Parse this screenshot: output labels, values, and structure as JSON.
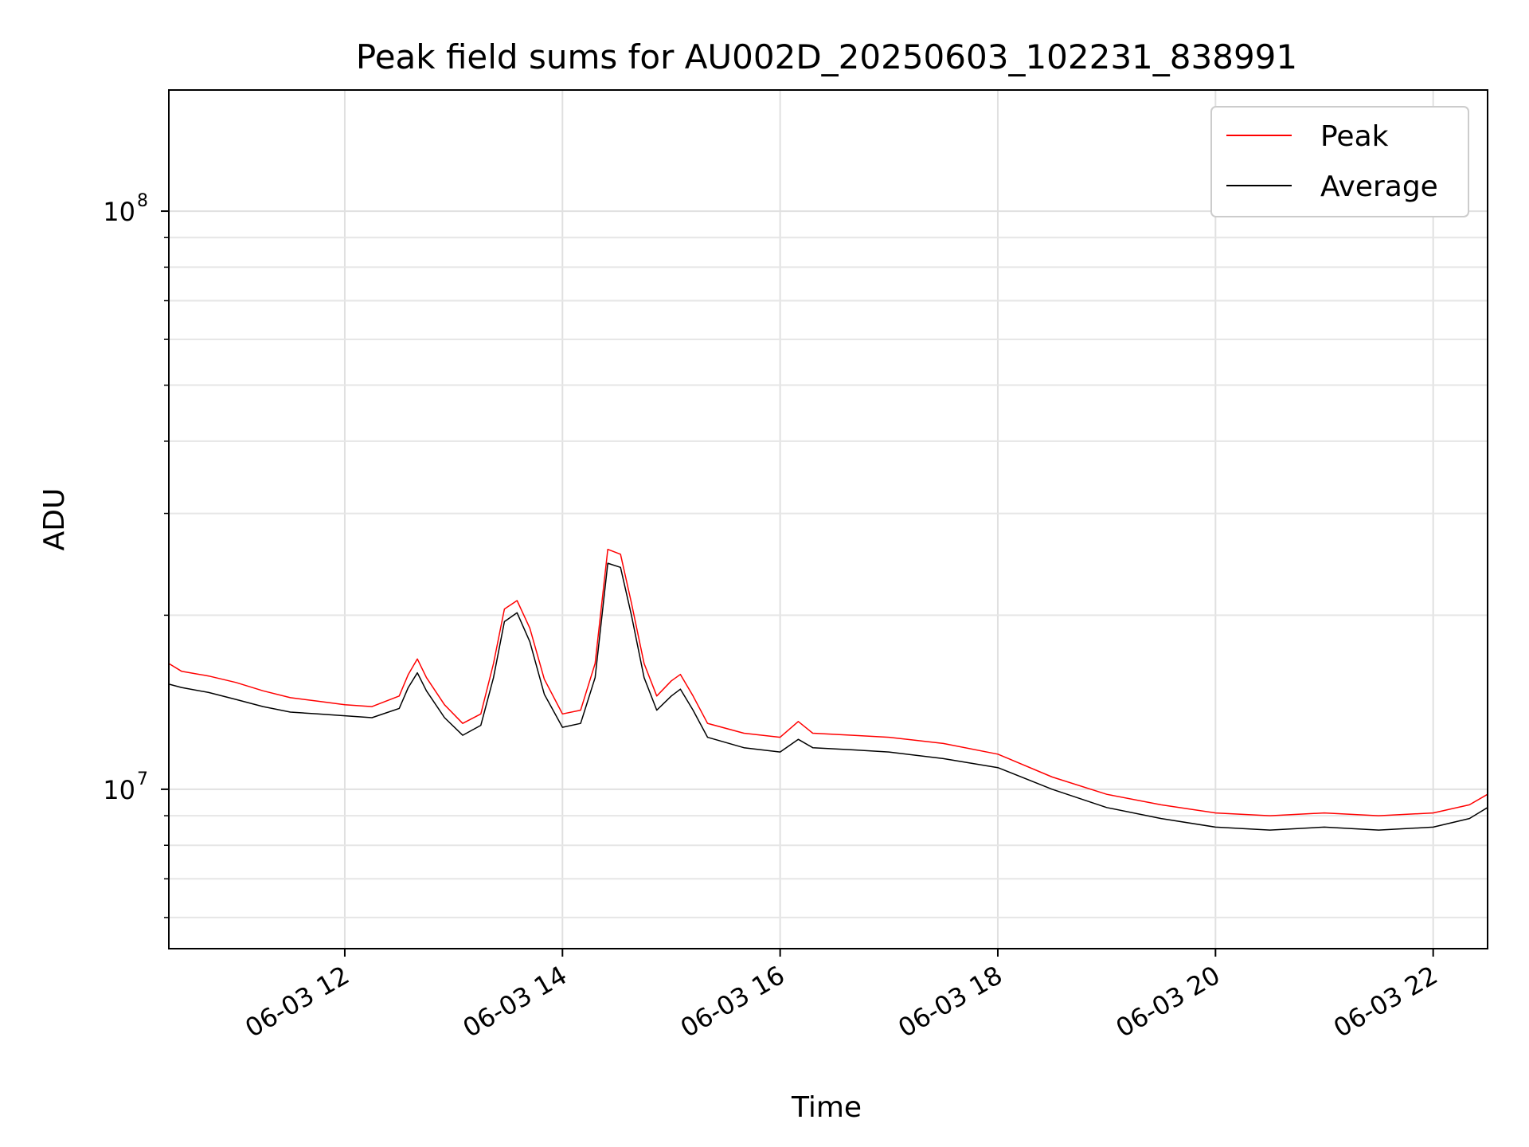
{
  "chart_data": {
    "type": "line",
    "title": "Peak field sums for AU002D_20250603_102231_838991",
    "xlabel": "Time",
    "ylabel": "ADU",
    "yscale": "log",
    "xlim": [
      "2025-06-03 10:23",
      "2025-06-03 22:30"
    ],
    "ylim": [
      5300000,
      162000000
    ],
    "grid": true,
    "legend_position": "top-right",
    "x_ticks": [
      "2025-06-03 12:00",
      "2025-06-03 14:00",
      "2025-06-03 16:00",
      "2025-06-03 18:00",
      "2025-06-03 20:00",
      "2025-06-03 22:00"
    ],
    "x_tick_labels": [
      "06-03 12",
      "06-03 14",
      "06-03 16",
      "06-03 18",
      "06-03 20",
      "06-03 22"
    ],
    "y_major_ticks": [
      10000000,
      100000000
    ],
    "y_tick_base": "10",
    "y_tick_exponents": [
      "7",
      "8"
    ],
    "y_minor_ticks": [
      6000000,
      7000000,
      8000000,
      9000000,
      20000000,
      30000000,
      40000000,
      50000000,
      60000000,
      70000000,
      80000000,
      90000000
    ],
    "series": [
      {
        "name": "Peak",
        "color": "#ff0000",
        "points": [
          [
            "2025-06-03 10:23",
            16500000
          ],
          [
            "2025-06-03 10:30",
            16000000
          ],
          [
            "2025-06-03 10:45",
            15700000
          ],
          [
            "2025-06-03 11:00",
            15300000
          ],
          [
            "2025-06-03 11:15",
            14800000
          ],
          [
            "2025-06-03 11:30",
            14400000
          ],
          [
            "2025-06-03 11:45",
            14200000
          ],
          [
            "2025-06-03 12:00",
            14000000
          ],
          [
            "2025-06-03 12:15",
            13900000
          ],
          [
            "2025-06-03 12:30",
            14500000
          ],
          [
            "2025-06-03 12:35",
            15800000
          ],
          [
            "2025-06-03 12:40",
            16800000
          ],
          [
            "2025-06-03 12:45",
            15600000
          ],
          [
            "2025-06-03 12:55",
            14000000
          ],
          [
            "2025-06-03 13:05",
            13000000
          ],
          [
            "2025-06-03 13:15",
            13500000
          ],
          [
            "2025-06-03 13:22",
            16500000
          ],
          [
            "2025-06-03 13:28",
            20500000
          ],
          [
            "2025-06-03 13:35",
            21200000
          ],
          [
            "2025-06-03 13:42",
            19000000
          ],
          [
            "2025-06-03 13:50",
            15500000
          ],
          [
            "2025-06-03 14:00",
            13500000
          ],
          [
            "2025-06-03 14:10",
            13700000
          ],
          [
            "2025-06-03 14:18",
            16500000
          ],
          [
            "2025-06-03 14:25",
            26000000
          ],
          [
            "2025-06-03 14:32",
            25500000
          ],
          [
            "2025-06-03 14:38",
            21000000
          ],
          [
            "2025-06-03 14:45",
            16500000
          ],
          [
            "2025-06-03 14:52",
            14500000
          ],
          [
            "2025-06-03 15:00",
            15400000
          ],
          [
            "2025-06-03 15:05",
            15800000
          ],
          [
            "2025-06-03 15:12",
            14500000
          ],
          [
            "2025-06-03 15:20",
            13000000
          ],
          [
            "2025-06-03 15:40",
            12500000
          ],
          [
            "2025-06-03 16:00",
            12300000
          ],
          [
            "2025-06-03 16:10",
            13100000
          ],
          [
            "2025-06-03 16:18",
            12500000
          ],
          [
            "2025-06-03 16:40",
            12400000
          ],
          [
            "2025-06-03 17:00",
            12300000
          ],
          [
            "2025-06-03 17:30",
            12000000
          ],
          [
            "2025-06-03 18:00",
            11500000
          ],
          [
            "2025-06-03 18:30",
            10500000
          ],
          [
            "2025-06-03 19:00",
            9800000
          ],
          [
            "2025-06-03 19:30",
            9400000
          ],
          [
            "2025-06-03 20:00",
            9100000
          ],
          [
            "2025-06-03 20:30",
            9000000
          ],
          [
            "2025-06-03 21:00",
            9100000
          ],
          [
            "2025-06-03 21:30",
            9000000
          ],
          [
            "2025-06-03 22:00",
            9100000
          ],
          [
            "2025-06-03 22:20",
            9400000
          ],
          [
            "2025-06-03 22:30",
            9800000
          ]
        ]
      },
      {
        "name": "Average",
        "color": "#000000",
        "points": [
          [
            "2025-06-03 10:23",
            15200000
          ],
          [
            "2025-06-03 10:30",
            15000000
          ],
          [
            "2025-06-03 10:45",
            14700000
          ],
          [
            "2025-06-03 11:00",
            14300000
          ],
          [
            "2025-06-03 11:15",
            13900000
          ],
          [
            "2025-06-03 11:30",
            13600000
          ],
          [
            "2025-06-03 11:45",
            13500000
          ],
          [
            "2025-06-03 12:00",
            13400000
          ],
          [
            "2025-06-03 12:15",
            13300000
          ],
          [
            "2025-06-03 12:30",
            13800000
          ],
          [
            "2025-06-03 12:35",
            15000000
          ],
          [
            "2025-06-03 12:40",
            15900000
          ],
          [
            "2025-06-03 12:45",
            14800000
          ],
          [
            "2025-06-03 12:55",
            13300000
          ],
          [
            "2025-06-03 13:05",
            12400000
          ],
          [
            "2025-06-03 13:15",
            12900000
          ],
          [
            "2025-06-03 13:22",
            15600000
          ],
          [
            "2025-06-03 13:28",
            19500000
          ],
          [
            "2025-06-03 13:35",
            20200000
          ],
          [
            "2025-06-03 13:42",
            18000000
          ],
          [
            "2025-06-03 13:50",
            14600000
          ],
          [
            "2025-06-03 14:00",
            12800000
          ],
          [
            "2025-06-03 14:10",
            13000000
          ],
          [
            "2025-06-03 14:18",
            15600000
          ],
          [
            "2025-06-03 14:25",
            24600000
          ],
          [
            "2025-06-03 14:32",
            24200000
          ],
          [
            "2025-06-03 14:38",
            20000000
          ],
          [
            "2025-06-03 14:45",
            15600000
          ],
          [
            "2025-06-03 14:52",
            13700000
          ],
          [
            "2025-06-03 15:00",
            14500000
          ],
          [
            "2025-06-03 15:05",
            14900000
          ],
          [
            "2025-06-03 15:12",
            13700000
          ],
          [
            "2025-06-03 15:20",
            12300000
          ],
          [
            "2025-06-03 15:40",
            11800000
          ],
          [
            "2025-06-03 16:00",
            11600000
          ],
          [
            "2025-06-03 16:10",
            12200000
          ],
          [
            "2025-06-03 16:18",
            11800000
          ],
          [
            "2025-06-03 16:40",
            11700000
          ],
          [
            "2025-06-03 17:00",
            11600000
          ],
          [
            "2025-06-03 17:30",
            11300000
          ],
          [
            "2025-06-03 18:00",
            10900000
          ],
          [
            "2025-06-03 18:30",
            10000000
          ],
          [
            "2025-06-03 19:00",
            9300000
          ],
          [
            "2025-06-03 19:30",
            8900000
          ],
          [
            "2025-06-03 20:00",
            8600000
          ],
          [
            "2025-06-03 20:30",
            8500000
          ],
          [
            "2025-06-03 21:00",
            8600000
          ],
          [
            "2025-06-03 21:30",
            8500000
          ],
          [
            "2025-06-03 22:00",
            8600000
          ],
          [
            "2025-06-03 22:20",
            8900000
          ],
          [
            "2025-06-03 22:30",
            9300000
          ]
        ]
      }
    ]
  }
}
